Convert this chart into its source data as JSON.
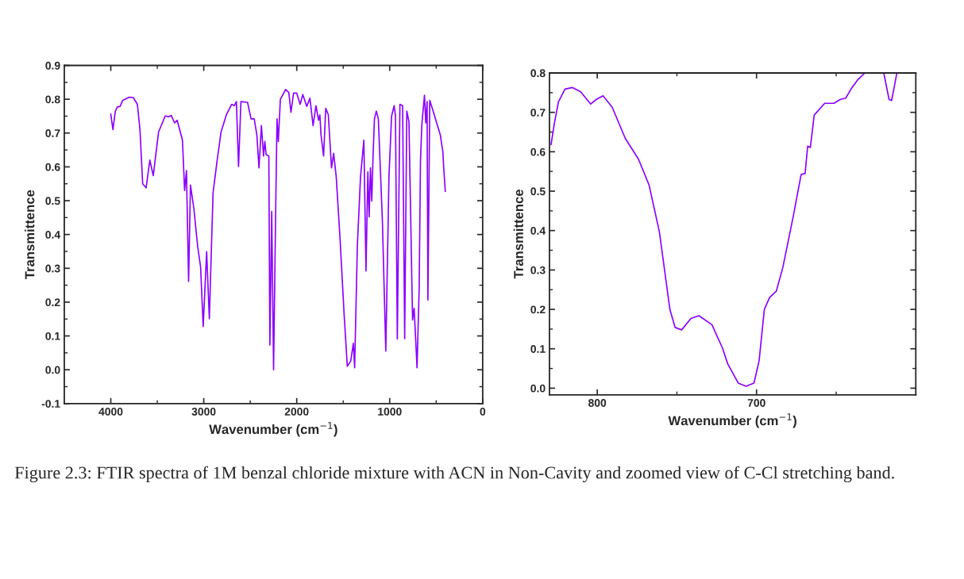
{
  "chart_data": [
    {
      "type": "line",
      "xlabel": "Wavenumber (cm$^{−1}$)",
      "ylabel": "Transmittence",
      "xlim": [
        4500,
        0
      ],
      "ylim": [
        -0.1,
        0.9
      ],
      "xticks": [
        4000,
        {
          "value": 3500,
          "label": null
        },
        3000,
        {
          "value": 2500,
          "label": null
        },
        2000,
        {
          "value": 1500,
          "label": null
        },
        1000,
        {
          "value": 500,
          "label": null
        },
        0
      ],
      "yticks": [
        -0.1,
        {
          "value": -0.05,
          "label": null
        },
        {
          "value": 0,
          "label": "0.0"
        },
        {
          "value": 0.05,
          "label": null
        },
        0.1,
        {
          "value": 0.15,
          "label": null
        },
        0.2,
        {
          "value": 0.25,
          "label": null
        },
        0.3,
        {
          "value": 0.35,
          "label": null
        },
        0.4,
        {
          "value": 0.45,
          "label": null
        },
        0.5,
        {
          "value": 0.55,
          "label": null
        },
        0.6,
        {
          "value": 0.65,
          "label": null
        },
        0.7,
        {
          "value": 0.75,
          "label": null
        },
        0.8,
        {
          "value": 0.85,
          "label": null
        },
        0.9
      ],
      "annotations": [
        "Figure 2.3: FTIR spectra of 1M benzal chloride mixture with ACN in Non-Cavity and zoomed view of C-Cl stretching band."
      ],
      "series": [
        {
          "color": "#8b00ff",
          "x": [
            4000,
            3977,
            3951,
            3929,
            3900,
            3871,
            3800,
            3757,
            3714,
            3686,
            3657,
            3620,
            3580,
            3543,
            3486,
            3414,
            3380,
            3349,
            3314,
            3286,
            3229,
            3206,
            3186,
            3163,
            3143,
            3106,
            3066,
            3034,
            3006,
            2969,
            2940,
            2900,
            2857,
            2814,
            2757,
            2700,
            2671,
            2649,
            2626,
            2600,
            2529,
            2491,
            2457,
            2429,
            2406,
            2380,
            2357,
            2343,
            2329,
            2300,
            2289,
            2269,
            2249,
            2227,
            2212,
            2198,
            2176,
            2119,
            2085,
            2062,
            2034,
            2000,
            1963,
            1935,
            1892,
            1858,
            1824,
            1793,
            1765,
            1751,
            1739,
            1711,
            1688,
            1660,
            1626,
            1603,
            1575,
            1533,
            1490,
            1456,
            1419,
            1391,
            1377,
            1348,
            1314,
            1278,
            1255,
            1235,
            1221,
            1207,
            1193,
            1178,
            1164,
            1144,
            1122,
            1079,
            1042,
            1008,
            980,
            952,
            938,
            918,
            890,
            861,
            839,
            816,
            793,
            754,
            737,
            706,
            683,
            669,
            654,
            626,
            612,
            598,
            589,
            569,
            533,
            499,
            456,
            428,
            419,
            402
          ],
          "values": [
            0.756,
            0.71,
            0.765,
            0.777,
            0.779,
            0.797,
            0.806,
            0.805,
            0.785,
            0.71,
            0.55,
            0.538,
            0.62,
            0.574,
            0.703,
            0.751,
            0.748,
            0.752,
            0.73,
            0.738,
            0.679,
            0.53,
            0.589,
            0.261,
            0.546,
            0.476,
            0.366,
            0.304,
            0.128,
            0.349,
            0.151,
            0.523,
            0.617,
            0.703,
            0.754,
            0.785,
            0.781,
            0.793,
            0.601,
            0.793,
            0.791,
            0.742,
            0.742,
            0.695,
            0.597,
            0.722,
            0.632,
            0.675,
            0.636,
            0.632,
            0.073,
            0.468,
            0.0,
            0.46,
            0.742,
            0.675,
            0.8,
            0.829,
            0.82,
            0.761,
            0.818,
            0.818,
            0.785,
            0.814,
            0.779,
            0.803,
            0.722,
            0.781,
            0.738,
            0.754,
            0.695,
            0.632,
            0.773,
            0.754,
            0.597,
            0.64,
            0.57,
            0.382,
            0.163,
            0.01,
            0.026,
            0.078,
            0.006,
            0.366,
            0.57,
            0.679,
            0.292,
            0.585,
            0.452,
            0.597,
            0.499,
            0.64,
            0.742,
            0.765,
            0.742,
            0.444,
            0.055,
            0.57,
            0.75,
            0.781,
            0.75,
            0.091,
            0.785,
            0.781,
            0.092,
            0.765,
            0.734,
            0.147,
            0.182,
            0.006,
            0.241,
            0.617,
            0.726,
            0.812,
            0.73,
            0.793,
            0.206,
            0.797,
            0.765,
            0.734,
            0.695,
            0.644,
            0.597,
            0.527
          ]
        }
      ]
    },
    {
      "type": "line",
      "xlabel": "Wavenumber (cm$^{−1}$)",
      "ylabel": "Transmittence",
      "xlim": [
        830,
        600
      ],
      "ylim": [
        -0.017,
        0.8
      ],
      "xticks": [
        800,
        {
          "value": 750,
          "label": null
        },
        700,
        {
          "value": 650,
          "label": null
        }
      ],
      "yticks": [
        {
          "value": 0,
          "label": "0.0"
        },
        {
          "value": 0.05,
          "label": null
        },
        0.1,
        {
          "value": 0.15,
          "label": null
        },
        0.2,
        {
          "value": 0.25,
          "label": null
        },
        0.3,
        {
          "value": 0.35,
          "label": null
        },
        0.4,
        {
          "value": 0.45,
          "label": null
        },
        0.5,
        {
          "value": 0.55,
          "label": null
        },
        0.6,
        {
          "value": 0.65,
          "label": null
        },
        0.7,
        {
          "value": 0.75,
          "label": null
        },
        0.8
      ],
      "series": [
        {
          "color": "#8b00ff",
          "x": [
            829,
            826.9,
            824.4,
            820.3,
            815.7,
            810.4,
            804.1,
            800.5,
            796.4,
            790.6,
            782.4,
            774.1,
            767.5,
            761.0,
            754.4,
            751.1,
            747.0,
            741.2,
            736.2,
            728.0,
            721.4,
            718.1,
            711.5,
            706.6,
            701.6,
            698.4,
            695.1,
            691.8,
            687.6,
            683.5,
            676.9,
            672.0,
            669.5,
            667.9,
            666.2,
            663.8,
            657.2,
            651.4,
            647.3,
            644.0,
            640.7,
            636.6,
            632.0,
            626,
            620.1,
            616.8,
            615.2,
            613.5,
            611.9
          ],
          "values": [
            0.618,
            0.673,
            0.726,
            0.759,
            0.763,
            0.752,
            0.721,
            0.733,
            0.742,
            0.713,
            0.634,
            0.581,
            0.516,
            0.397,
            0.2,
            0.154,
            0.148,
            0.177,
            0.184,
            0.161,
            0.102,
            0.062,
            0.013,
            0.005,
            0.013,
            0.069,
            0.2,
            0.23,
            0.246,
            0.306,
            0.437,
            0.542,
            0.545,
            0.614,
            0.611,
            0.693,
            0.723,
            0.723,
            0.733,
            0.736,
            0.759,
            0.782,
            0.8,
            null,
            0.8,
            0.733,
            0.73,
            0.765,
            0.8
          ]
        }
      ]
    }
  ]
}
